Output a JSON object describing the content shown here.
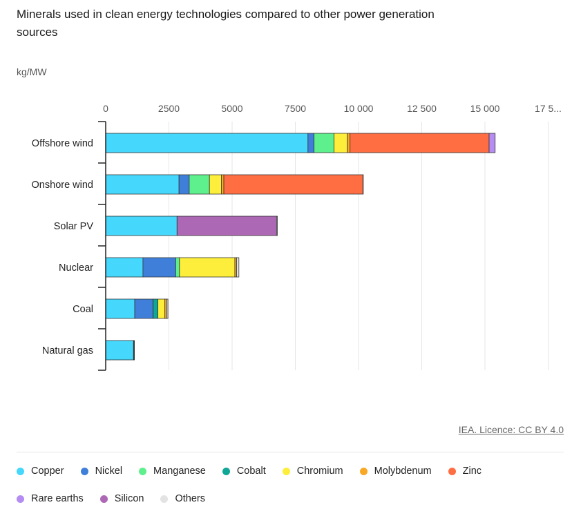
{
  "chart_data": {
    "type": "bar",
    "orientation": "horizontal",
    "stacked": true,
    "title": "Minerals used in clean energy technologies compared to other power generation sources",
    "ylabel": "kg/MW",
    "xlim": [
      0,
      17500
    ],
    "x_ticks": [
      "0",
      "2500",
      "5000",
      "7500",
      "10 000",
      "12 500",
      "15 000",
      "17 5..."
    ],
    "x_tick_values": [
      0,
      2500,
      5000,
      7500,
      10000,
      12500,
      15000,
      17500
    ],
    "grid": true,
    "legend_position": "bottom",
    "categories": [
      "Offshore wind",
      "Onshore wind",
      "Solar PV",
      "Nuclear",
      "Coal",
      "Natural gas"
    ],
    "series": [
      {
        "name": "Copper",
        "color": "#45d8fc",
        "values": [
          8000,
          2900,
          2822,
          1473,
          1150,
          1100
        ]
      },
      {
        "name": "Nickel",
        "color": "#3f7fd9",
        "values": [
          240,
          404,
          0,
          1297,
          721,
          16
        ]
      },
      {
        "name": "Manganese",
        "color": "#5ef08c",
        "values": [
          790,
          800,
          0,
          148,
          5,
          0
        ]
      },
      {
        "name": "Cobalt",
        "color": "#11a797",
        "values": [
          0,
          0,
          0,
          0,
          190,
          0
        ]
      },
      {
        "name": "Chromium",
        "color": "#fcee3a",
        "values": [
          525,
          470,
          0,
          2190,
          275,
          0
        ]
      },
      {
        "name": "Molybdenum",
        "color": "#f9a825",
        "values": [
          109,
          99,
          0,
          70,
          70,
          0
        ]
      },
      {
        "name": "Zinc",
        "color": "#ff6d42",
        "values": [
          5500,
          5500,
          0,
          0,
          0,
          0
        ]
      },
      {
        "name": "Rare earths",
        "color": "#b48cf2",
        "values": [
          239,
          14,
          0,
          0,
          0,
          0
        ]
      },
      {
        "name": "Silicon",
        "color": "#ad68b5",
        "values": [
          0,
          0,
          3937,
          0,
          0,
          0
        ]
      },
      {
        "name": "Others",
        "color": "#e3e3e3",
        "values": [
          0,
          0,
          30,
          90,
          50,
          20
        ]
      }
    ]
  },
  "credit": "IEA. Licence: CC BY 4.0"
}
